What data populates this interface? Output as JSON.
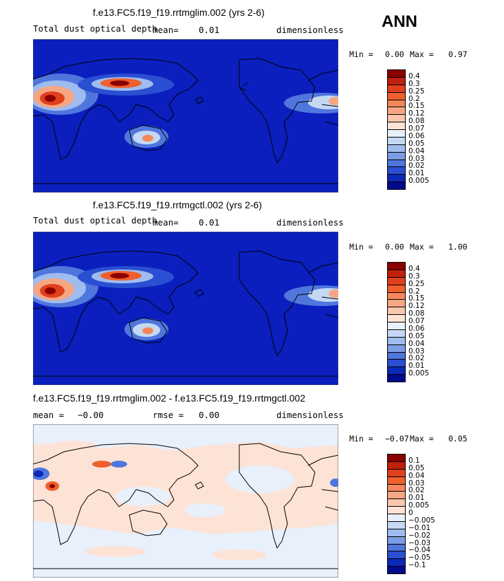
{
  "season": "ANN",
  "panels": [
    {
      "title": "f.e13.FC5.f19_f19.rrtmglim.002 (yrs 2-6)",
      "variable": "Total dust optical depth",
      "mean_label": "mean=",
      "mean_value": "0.01",
      "units": "dimensionless",
      "min_label": "Min =",
      "min_value": "0.00",
      "max_label": "Max =",
      "max_value": "0.97",
      "colorbar": {
        "labels": [
          "0.4",
          "0.3",
          "0.25",
          "0.2",
          "0.15",
          "0.12",
          "0.08",
          "0.07",
          "0.06",
          "0.05",
          "0.04",
          "0.03",
          "0.02",
          "0.01",
          "0.005"
        ],
        "colors": [
          "#8b0000",
          "#c0200d",
          "#e0401c",
          "#f05f2c",
          "#f4875a",
          "#f7a684",
          "#fac6ae",
          "#fde3d6",
          "#e8f0fb",
          "#c4d8f4",
          "#9fbcee",
          "#7a9de6",
          "#4f76dd",
          "#2a4fd2",
          "#0d28b8",
          "#000a8c"
        ]
      },
      "map": {
        "background": "#0a1fbd"
      }
    },
    {
      "title": "f.e13.FC5.f19_f19.rrtmgctl.002 (yrs 2-6)",
      "variable": "Total dust optical depth",
      "mean_label": "mean=",
      "mean_value": "0.01",
      "units": "dimensionless",
      "min_label": "Min =",
      "min_value": "0.00",
      "max_label": "Max =",
      "max_value": "1.00",
      "colorbar": {
        "labels": [
          "0.4",
          "0.3",
          "0.25",
          "0.2",
          "0.15",
          "0.12",
          "0.08",
          "0.07",
          "0.06",
          "0.05",
          "0.04",
          "0.03",
          "0.02",
          "0.01",
          "0.005"
        ],
        "colors": [
          "#8b0000",
          "#c0200d",
          "#e0401c",
          "#f05f2c",
          "#f4875a",
          "#f7a684",
          "#fac6ae",
          "#fde3d6",
          "#e8f0fb",
          "#c4d8f4",
          "#9fbcee",
          "#7a9de6",
          "#4f76dd",
          "#2a4fd2",
          "#0d28b8",
          "#000a8c"
        ]
      },
      "map": {
        "background": "#0a1fbd"
      }
    },
    {
      "title": "f.e13.FC5.f19_f19.rrtmglim.002 - f.e13.FC5.f19_f19.rrtmgctl.002",
      "mean_label": "mean =",
      "mean_value": "−0.00",
      "rmse_label": "rmse =",
      "rmse_value": "0.00",
      "units": "dimensionless",
      "min_label": "Min =",
      "min_value": "−0.07",
      "max_label": "Max =",
      "max_value": "0.05",
      "colorbar": {
        "labels": [
          "0.1",
          "0.05",
          "0.04",
          "0.03",
          "0.02",
          "0.01",
          "0.005",
          "0",
          "−0.005",
          "−0.01",
          "−0.02",
          "−0.03",
          "−0.04",
          "−0.05",
          "−0.1"
        ],
        "colors": [
          "#8b0000",
          "#c0200d",
          "#e0401c",
          "#f05f2c",
          "#f4875a",
          "#f7a684",
          "#fac6ae",
          "#fde3d6",
          "#e8f0fb",
          "#c4d8f4",
          "#9fbcee",
          "#7a9de6",
          "#4f76dd",
          "#2a4fd2",
          "#0d28b8",
          "#000a8c"
        ]
      },
      "map": {
        "background": "#fde3d6"
      }
    }
  ]
}
